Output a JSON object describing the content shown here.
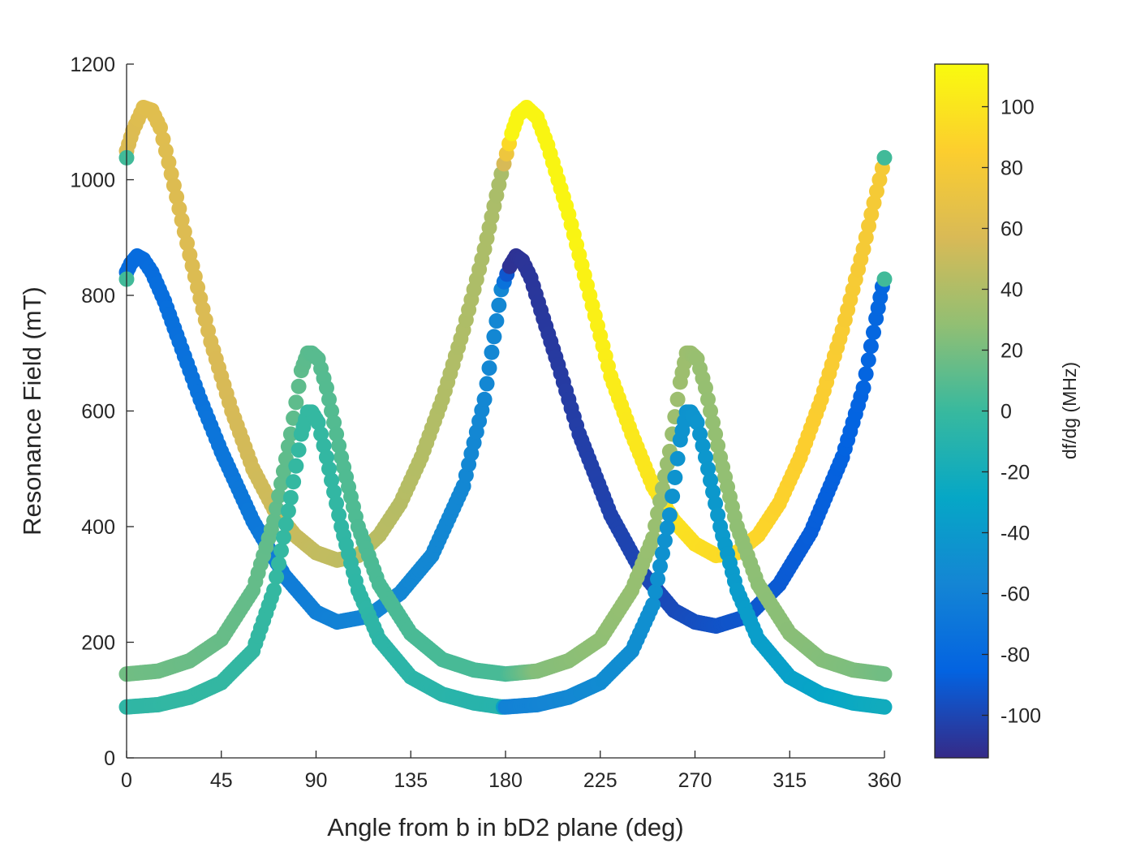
{
  "chart_data": {
    "type": "scatter",
    "title": "",
    "xlabel": "Angle from b in bD2 plane (deg)",
    "ylabel": "Resonance Field (mT)",
    "xlim": [
      0,
      360
    ],
    "ylim": [
      0,
      1200
    ],
    "xticks": [
      0,
      45,
      90,
      135,
      180,
      225,
      270,
      315,
      360
    ],
    "yticks": [
      0,
      200,
      400,
      600,
      800,
      1000,
      1200
    ],
    "grid": false,
    "legend": "none",
    "colorbar": {
      "label": "df/dg (MHz)",
      "range": [
        -114,
        114
      ],
      "ticks": [
        -100,
        -80,
        -60,
        -40,
        -20,
        0,
        20,
        40,
        60,
        80,
        100
      ],
      "colormap": "parula",
      "location": "right"
    },
    "series": [
      {
        "x": [
          0,
          3,
          8,
          12,
          16,
          20,
          25,
          30,
          40,
          50,
          60,
          70,
          80,
          90,
          100,
          110,
          120,
          130,
          140,
          150,
          160,
          170,
          178,
          183,
          186,
          190,
          195,
          200,
          210,
          220,
          230,
          240,
          250,
          260,
          270,
          280,
          290,
          300,
          310,
          320,
          330,
          340,
          350,
          355,
          359
        ],
        "y": [
          1050,
          1085,
          1125,
          1120,
          1090,
          1030,
          950,
          870,
          720,
          600,
          500,
          430,
          385,
          355,
          342,
          350,
          385,
          440,
          520,
          620,
          740,
          880,
          1010,
          1080,
          1112,
          1125,
          1108,
          1060,
          940,
          800,
          660,
          560,
          470,
          410,
          370,
          350,
          355,
          385,
          440,
          520,
          620,
          740,
          880,
          960,
          1020
        ],
        "c": [
          58,
          60,
          62,
          63,
          62,
          61,
          60,
          60,
          58,
          56,
          54,
          52,
          50,
          48,
          47,
          45,
          44,
          43,
          42,
          41,
          40,
          39,
          38,
          110,
          110,
          110,
          110,
          110,
          110,
          108,
          105,
          102,
          100,
          98,
          96,
          94,
          92,
          90,
          88,
          86,
          84,
          82,
          80,
          80,
          80
        ]
      },
      {
        "x": [
          0,
          2,
          5,
          8,
          12,
          18,
          25,
          35,
          45,
          60,
          75,
          90,
          100,
          115,
          130,
          145,
          160,
          170,
          178,
          182,
          185,
          188,
          192,
          198,
          205,
          215,
          230,
          245,
          260,
          270,
          280,
          295,
          310,
          325,
          340,
          350,
          356,
          359
        ],
        "y": [
          840,
          855,
          868,
          862,
          840,
          790,
          720,
          620,
          530,
          410,
          315,
          252,
          235,
          245,
          285,
          350,
          470,
          620,
          810,
          850,
          868,
          860,
          830,
          760,
          680,
          560,
          420,
          320,
          255,
          235,
          228,
          245,
          300,
          390,
          520,
          640,
          760,
          815
        ],
        "c": [
          -78,
          -78,
          -78,
          -78,
          -77,
          -76,
          -74,
          -72,
          -70,
          -68,
          -65,
          -62,
          -60,
          -58,
          -56,
          -55,
          -55,
          -55,
          -55,
          -110,
          -110,
          -109,
          -108,
          -107,
          -106,
          -104,
          -102,
          -100,
          -98,
          -96,
          -94,
          -92,
          -90,
          -88,
          -86,
          -84,
          -82,
          -82
        ]
      },
      {
        "x": [
          0,
          15,
          30,
          45,
          60,
          70,
          78,
          83,
          86,
          88,
          91,
          95,
          102,
          110,
          120,
          135,
          150,
          165,
          180,
          195,
          210,
          225,
          240,
          250,
          258,
          263,
          266,
          268,
          271,
          275,
          282,
          290,
          300,
          315,
          330,
          345,
          360
        ],
        "y": [
          145,
          150,
          168,
          205,
          290,
          410,
          560,
          670,
          700,
          700,
          690,
          640,
          520,
          400,
          300,
          215,
          170,
          152,
          145,
          150,
          168,
          205,
          290,
          380,
          530,
          650,
          700,
          700,
          690,
          640,
          520,
          400,
          300,
          215,
          170,
          152,
          145
        ],
        "c": [
          18,
          17,
          16,
          15,
          14,
          13,
          12,
          12,
          11,
          10,
          10,
          9,
          8,
          7,
          6,
          6,
          5,
          5,
          5,
          24,
          26,
          28,
          30,
          31,
          32,
          33,
          33,
          32,
          31,
          30,
          29,
          28,
          27,
          26,
          24,
          22,
          18
        ]
      },
      {
        "x": [
          0,
          15,
          30,
          45,
          60,
          70,
          78,
          83,
          86,
          88,
          91,
          95,
          102,
          110,
          120,
          135,
          150,
          165,
          178,
          180,
          195,
          210,
          225,
          240,
          250,
          258,
          263,
          266,
          268,
          271,
          275,
          282,
          290,
          300,
          315,
          330,
          345,
          360
        ],
        "y": [
          88,
          92,
          105,
          130,
          185,
          290,
          450,
          560,
          598,
          598,
          580,
          520,
          400,
          290,
          205,
          140,
          110,
          95,
          88,
          88,
          92,
          105,
          130,
          185,
          265,
          420,
          550,
          598,
          598,
          580,
          520,
          400,
          290,
          205,
          140,
          110,
          95,
          88
        ],
        "c": [
          -5,
          -4,
          -3,
          -3,
          -3,
          -2,
          -2,
          -2,
          -2,
          -2,
          -2,
          -3,
          -4,
          -5,
          -6,
          -7,
          -8,
          -9,
          -10,
          -60,
          -58,
          -55,
          -52,
          -50,
          -48,
          -46,
          -45,
          -45,
          -45,
          -44,
          -42,
          -40,
          -38,
          -36,
          -34,
          -30,
          -26,
          -22
        ]
      },
      {
        "x": [
          0,
          360
        ],
        "y": [
          1038,
          1038
        ],
        "c": [
          3,
          3
        ]
      },
      {
        "x": [
          0,
          360
        ],
        "y": [
          828,
          828
        ],
        "c": [
          3,
          3
        ]
      }
    ]
  }
}
